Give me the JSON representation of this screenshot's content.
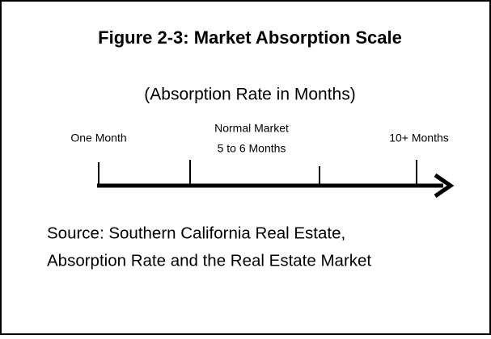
{
  "title": "Figure 2-3:  Market Absorption Scale",
  "subtitle": "(Absorption Rate in Months)",
  "scale_labels": [
    {
      "lines": [
        "One Month"
      ]
    },
    {
      "lines": [
        "Normal Market",
        "5 to 6 Months"
      ]
    },
    {
      "lines": [
        "10+ Months"
      ]
    }
  ],
  "source": [
    "Source:  Southern California Real Estate,",
    "Absorption Rate and the Real Estate Market"
  ]
}
